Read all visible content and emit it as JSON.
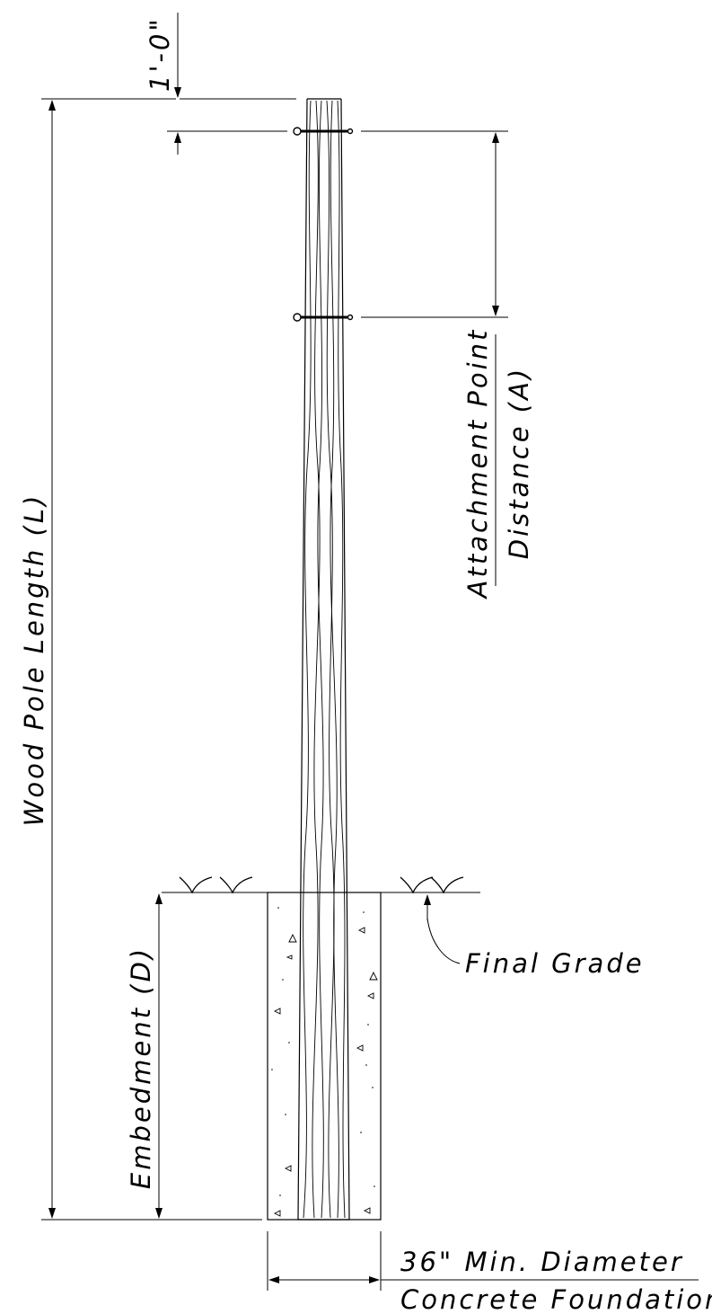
{
  "labels": {
    "top_offset": "1'-0\"",
    "pole_length": "Wood Pole Length (L)",
    "attachment_line1": "Attachment Point",
    "attachment_line2": "Distance (A)",
    "embedment": "Embedment (D)",
    "final_grade": "Final Grade",
    "foundation_line1": "36\" Min. Diameter",
    "foundation_line2": "Concrete Foundation"
  },
  "colors": {
    "ink": "#000000",
    "background": "#ffffff"
  }
}
